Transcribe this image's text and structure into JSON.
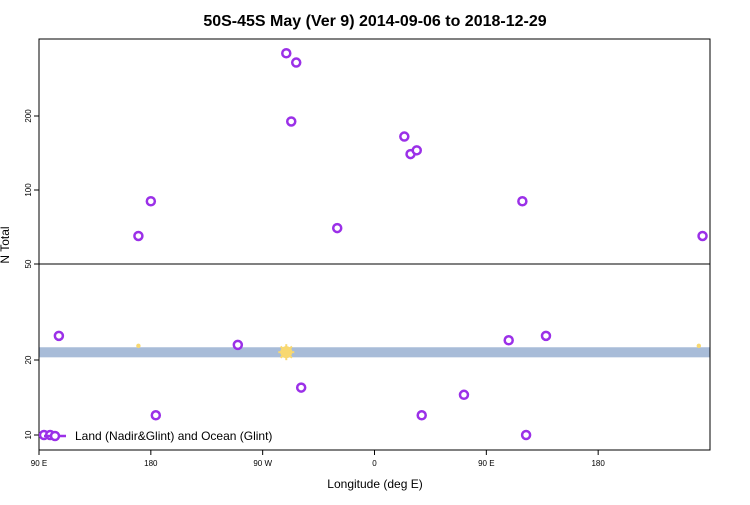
{
  "chart_data": {
    "type": "scatter",
    "title": "50S-45S May (Ver 9)   2014-09-06 to 2018-12-29",
    "xlabel": "Longitude (deg E)",
    "ylabel": "N Total",
    "xlim": [
      -90,
      180
    ],
    "x_ticks": [
      {
        "value": -90,
        "label": "90 E"
      },
      {
        "value": -45,
        "label": "180"
      },
      {
        "value": 0,
        "label": "90 W"
      },
      {
        "value": 45,
        "label": "0"
      },
      {
        "value": 90,
        "label": "90 E"
      },
      {
        "value": 135,
        "label": "180"
      }
    ],
    "y_scale": "broken-log",
    "upper_panel": {
      "ylim": [
        50,
        400
      ],
      "y_ticks": [
        50,
        100,
        200
      ]
    },
    "lower_panel": {
      "ylim": [
        8,
        50
      ],
      "y_ticks": [
        10,
        20
      ]
    },
    "band": {
      "y_low": 20.5,
      "y_high": 22.5,
      "color": "#a8bcd8"
    },
    "series": [
      {
        "name": "Land (Nadir&Glint) and Ocean (Glint)",
        "color": "#9b30e8",
        "marker": "open-circle",
        "points": [
          [
            -88,
            10
          ],
          [
            -85.5,
            10
          ],
          [
            -82,
            25
          ],
          [
            -50,
            65
          ],
          [
            -45,
            90
          ],
          [
            -43,
            12
          ],
          [
            -10,
            23
          ],
          [
            9.5,
            360
          ],
          [
            11.5,
            190
          ],
          [
            13.5,
            330
          ],
          [
            15.5,
            15.5
          ],
          [
            30,
            70
          ],
          [
            57,
            165
          ],
          [
            59.5,
            140
          ],
          [
            62,
            145
          ],
          [
            64,
            12
          ],
          [
            81,
            14.5
          ],
          [
            99,
            24
          ],
          [
            104.5,
            90
          ],
          [
            106,
            10
          ],
          [
            114,
            25
          ],
          [
            177,
            65
          ]
        ]
      }
    ],
    "highlights": {
      "color": "#f8d870",
      "points": [
        {
          "x": -50,
          "y": 22.8,
          "size": "small"
        },
        {
          "x": 9.5,
          "y": 21.5,
          "size": "large"
        },
        {
          "x": 175.5,
          "y": 22.8,
          "size": "small"
        }
      ]
    },
    "legend": {
      "position": "bottom-left"
    },
    "grid": false
  }
}
